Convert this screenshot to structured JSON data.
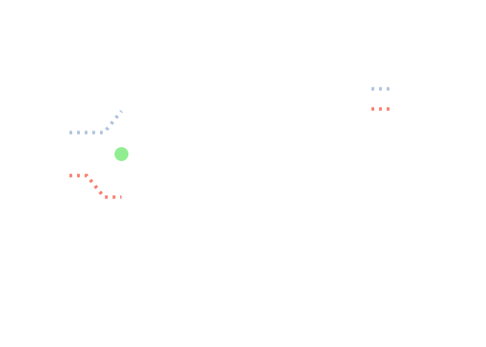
{
  "chart_data": {
    "type": "line",
    "xlim": [
      0,
      3
    ],
    "ylim": [
      -1,
      3
    ],
    "legend": "top-right",
    "series": [
      {
        "color": "#b0c4de",
        "mode": "lines",
        "dash": "dot",
        "x": [
          0,
          2,
          3
        ],
        "values": [
          2,
          2,
          3
        ],
        "showlegend": true
      },
      {
        "color": "#fa8072",
        "mode": "lines",
        "dash": "dot",
        "x": [
          0,
          1,
          2,
          3
        ],
        "values": [
          0,
          0,
          -1,
          -1
        ],
        "showlegend": true
      },
      {
        "color": "#90ee90",
        "mode": "markers",
        "x": [
          3
        ],
        "values": [
          1
        ],
        "showlegend": false
      }
    ]
  }
}
